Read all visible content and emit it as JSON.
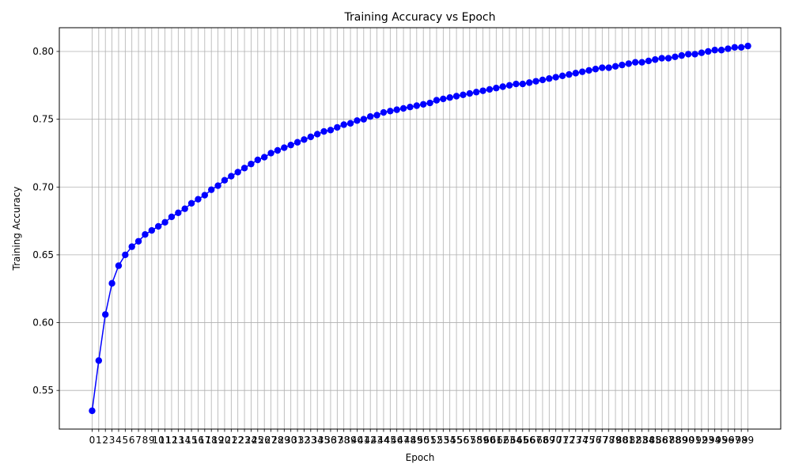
{
  "chart_data": {
    "type": "line",
    "title": "Training Accuracy vs Epoch",
    "xlabel": "Epoch",
    "ylabel": "Training Accuracy",
    "x": [
      0,
      1,
      2,
      3,
      4,
      5,
      6,
      7,
      8,
      9,
      10,
      11,
      12,
      13,
      14,
      15,
      16,
      17,
      18,
      19,
      20,
      21,
      22,
      23,
      24,
      25,
      26,
      27,
      28,
      29,
      30,
      31,
      32,
      33,
      34,
      35,
      36,
      37,
      38,
      39,
      40,
      41,
      42,
      43,
      44,
      45,
      46,
      47,
      48,
      49,
      50,
      51,
      52,
      53,
      54,
      55,
      56,
      57,
      58,
      59,
      60,
      61,
      62,
      63,
      64,
      65,
      66,
      67,
      68,
      69,
      70,
      71,
      72,
      73,
      74,
      75,
      76,
      77,
      78,
      79,
      80,
      81,
      82,
      83,
      84,
      85,
      86,
      87,
      88,
      89,
      90,
      91,
      92,
      93,
      94,
      95,
      96,
      97,
      98,
      99
    ],
    "series": [
      {
        "name": "",
        "color": "#0000ff",
        "marker": "circle",
        "values": [
          0.535,
          0.572,
          0.606,
          0.629,
          0.642,
          0.65,
          0.656,
          0.66,
          0.665,
          0.668,
          0.671,
          0.674,
          0.678,
          0.681,
          0.684,
          0.688,
          0.691,
          0.694,
          0.698,
          0.701,
          0.705,
          0.708,
          0.711,
          0.714,
          0.717,
          0.72,
          0.722,
          0.725,
          0.727,
          0.729,
          0.731,
          0.733,
          0.735,
          0.737,
          0.739,
          0.741,
          0.742,
          0.744,
          0.746,
          0.747,
          0.749,
          0.75,
          0.752,
          0.753,
          0.755,
          0.756,
          0.757,
          0.758,
          0.759,
          0.76,
          0.761,
          0.762,
          0.764,
          0.765,
          0.766,
          0.767,
          0.768,
          0.769,
          0.77,
          0.771,
          0.772,
          0.773,
          0.774,
          0.775,
          0.776,
          0.776,
          0.777,
          0.778,
          0.779,
          0.78,
          0.781,
          0.782,
          0.783,
          0.784,
          0.785,
          0.786,
          0.787,
          0.788,
          0.788,
          0.789,
          0.79,
          0.791,
          0.792,
          0.792,
          0.793,
          0.794,
          0.795,
          0.795,
          0.796,
          0.797,
          0.798,
          0.798,
          0.799,
          0.8,
          0.801,
          0.801,
          0.802,
          0.803,
          0.803,
          0.804
        ]
      }
    ],
    "y_ticks": [
      0.55,
      0.6,
      0.65,
      0.7,
      0.75,
      0.8
    ],
    "y_tick_labels": [
      "0.55",
      "0.60",
      "0.65",
      "0.70",
      "0.75",
      "0.80"
    ],
    "ylim": [
      0.5215,
      0.8175
    ],
    "xlim": [
      -4.95,
      103.95
    ],
    "grid": true
  }
}
